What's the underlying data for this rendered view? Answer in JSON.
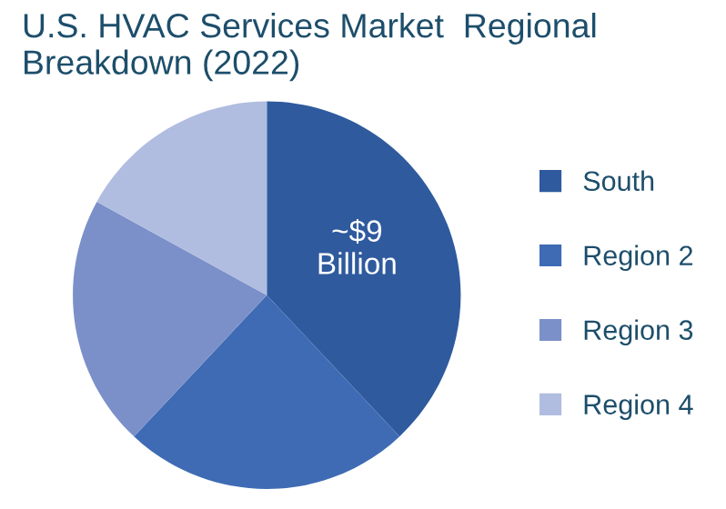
{
  "chart_data": {
    "type": "pie",
    "title": "U.S. HVAC Services Market  Regional Breakdown (2022)",
    "categories": [
      "South",
      "Region 2",
      "Region 3",
      "Region 4"
    ],
    "values": [
      38,
      24,
      21,
      17
    ],
    "colors": [
      "#2f5a9e",
      "#3e6bb4",
      "#7b90c9",
      "#b0bde0"
    ],
    "annotations": [
      {
        "text": "~$9\nBillion",
        "x": "South"
      }
    ],
    "legend": "right"
  }
}
